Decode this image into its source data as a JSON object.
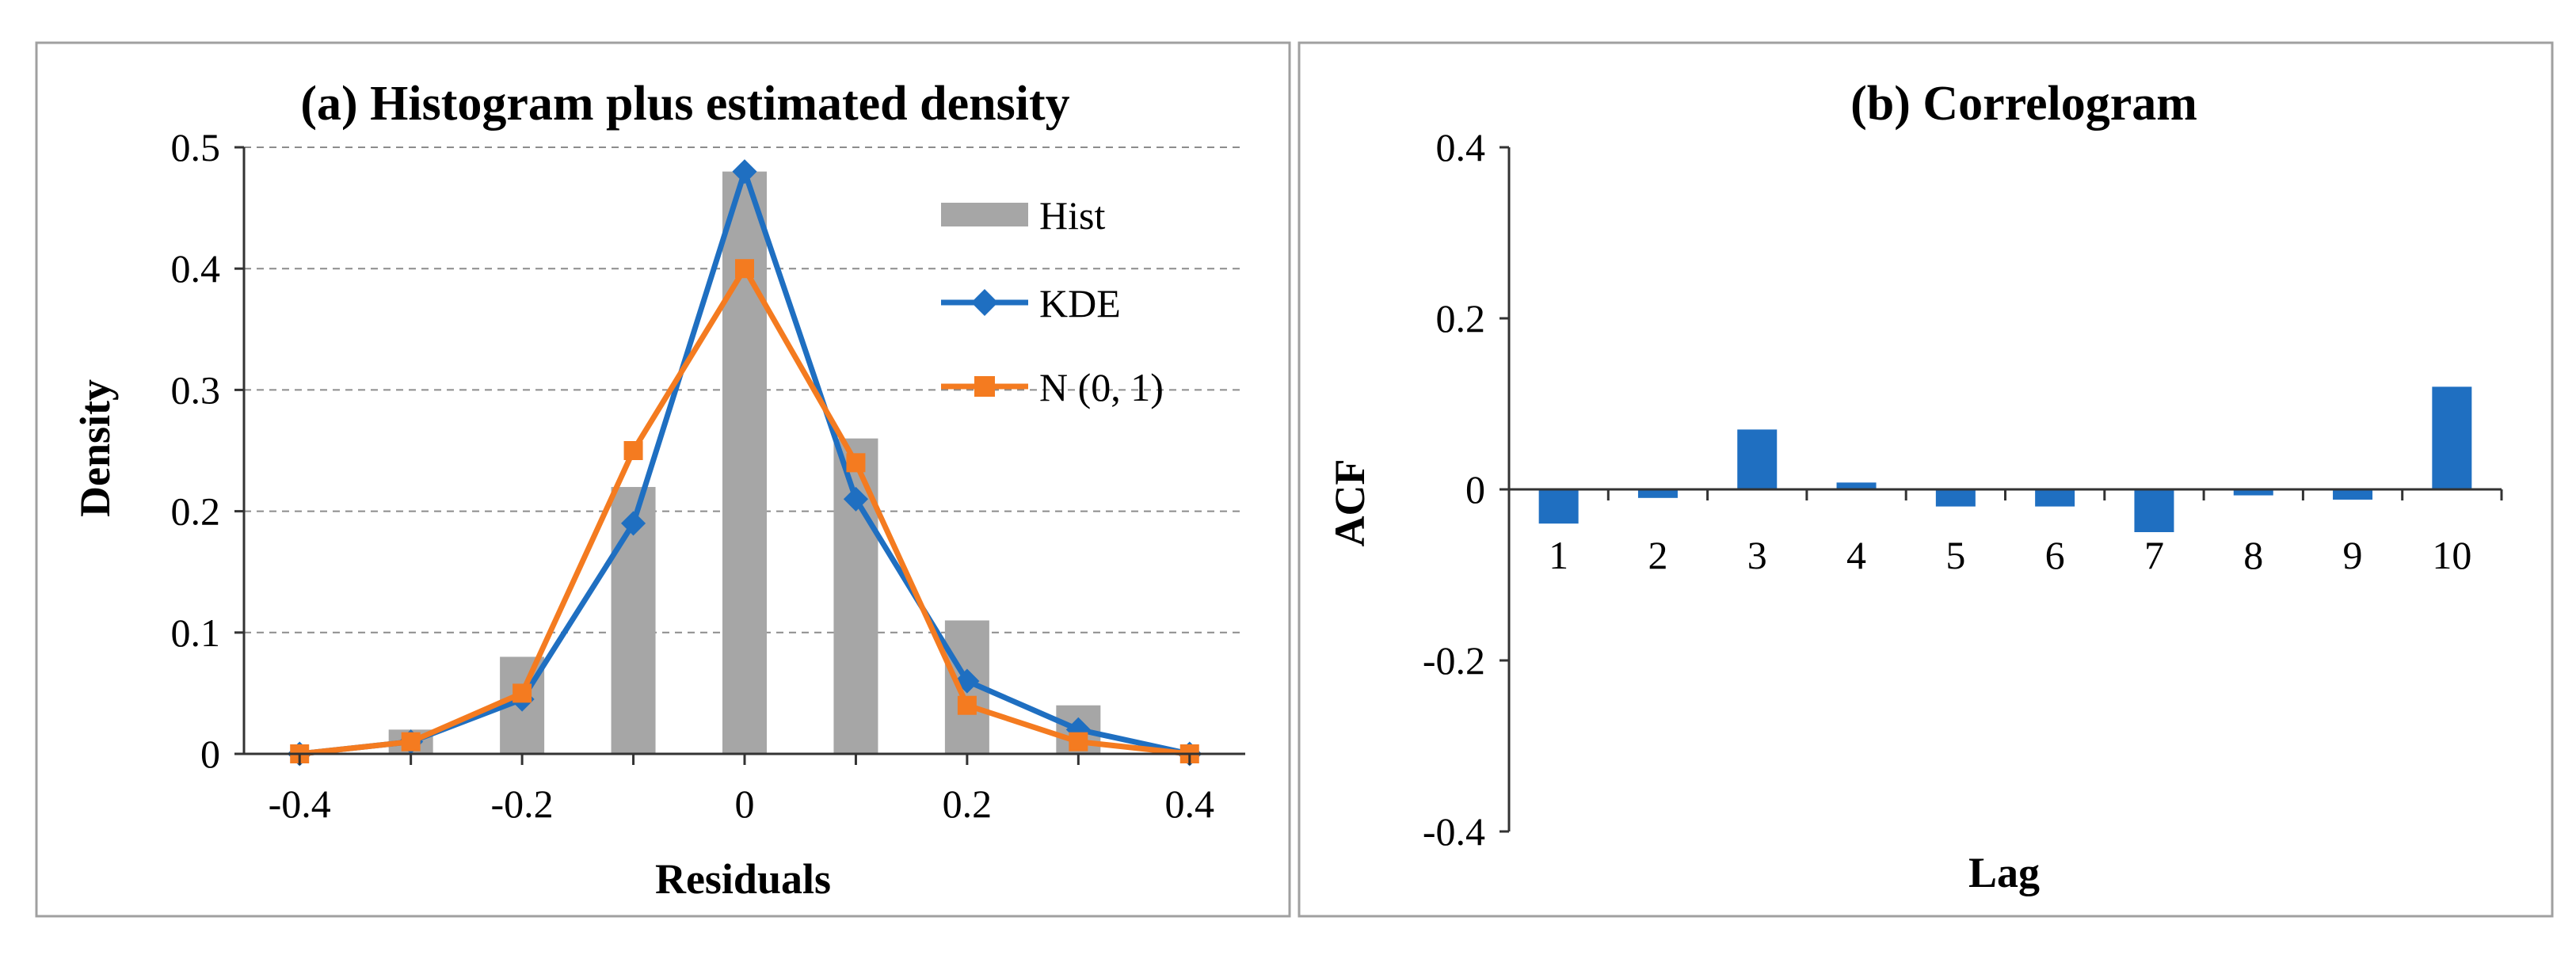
{
  "chart_data": [
    {
      "type": "bar",
      "title": "(a) Histogram plus estimated density",
      "xlabel": "Residuals",
      "ylabel": "Density",
      "xlim": [
        -0.45,
        0.45
      ],
      "ylim": [
        0,
        0.5
      ],
      "xticks": [
        -0.4,
        -0.2,
        0,
        0.2,
        0.4
      ],
      "xtick_labels": [
        "-0.4",
        "-0.2",
        "0",
        "0.2",
        "0.4"
      ],
      "yticks": [
        0,
        0.1,
        0.2,
        0.3,
        0.4,
        0.5
      ],
      "ytick_labels": [
        "0",
        "0.1",
        "0.2",
        "0.3",
        "0.4",
        "0.5"
      ],
      "grid": true,
      "legend": "right",
      "series": [
        {
          "name": "Hist",
          "kind": "bar",
          "color": "#a6a6a6",
          "x": [
            -0.3,
            -0.2,
            -0.1,
            0,
            0.1,
            0.2,
            0.3
          ],
          "values": [
            0.02,
            0.08,
            0.22,
            0.48,
            0.26,
            0.11,
            0.04
          ]
        },
        {
          "name": "KDE",
          "kind": "line",
          "marker": "diamond",
          "color": "#1f6fc1",
          "x": [
            -0.4,
            -0.3,
            -0.2,
            -0.1,
            0,
            0.1,
            0.2,
            0.3,
            0.4
          ],
          "values": [
            0.0,
            0.01,
            0.045,
            0.19,
            0.48,
            0.21,
            0.06,
            0.02,
            0.0
          ]
        },
        {
          "name": "N (0, 1)",
          "kind": "line",
          "marker": "square",
          "color": "#f47b20",
          "x": [
            -0.4,
            -0.3,
            -0.2,
            -0.1,
            0,
            0.1,
            0.2,
            0.3,
            0.4
          ],
          "values": [
            0.0,
            0.01,
            0.05,
            0.25,
            0.4,
            0.24,
            0.04,
            0.01,
            0.0
          ]
        }
      ]
    },
    {
      "type": "bar",
      "title": "(b) Correlogram",
      "xlabel": "Lag",
      "ylabel": "ACF",
      "ylim": [
        -0.4,
        0.4
      ],
      "yticks": [
        -0.4,
        -0.2,
        0,
        0.2,
        0.4
      ],
      "ytick_labels": [
        "-0.4",
        "-0.2",
        "0",
        "0.2",
        "0.4"
      ],
      "grid": false,
      "color": "#1f6fc1",
      "categories": [
        "1",
        "2",
        "3",
        "4",
        "5",
        "6",
        "7",
        "8",
        "9",
        "10"
      ],
      "values": [
        -0.04,
        -0.01,
        0.07,
        0.008,
        -0.02,
        -0.02,
        -0.05,
        -0.007,
        -0.012,
        0.12
      ]
    }
  ]
}
